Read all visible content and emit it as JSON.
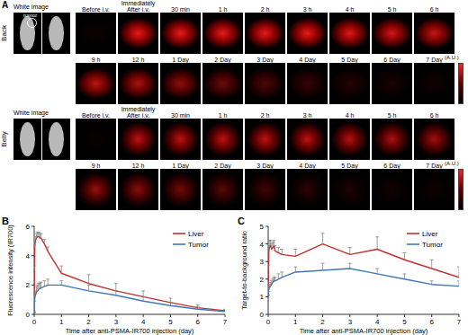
{
  "panel_a": {
    "label": "A",
    "rows": [
      {
        "label": "Back",
        "white_image": "White image",
        "annotation": "tumor",
        "colorbar": "(A.U.)",
        "timepoints": [
          [
            "Before i.v.",
            "Immediately After i.v.",
            "30 min",
            "1 h",
            "2 h",
            "3 h",
            "4 h",
            "5 h",
            "6 h"
          ],
          [
            "9 h",
            "12 h",
            "1 Day",
            "2 Day",
            "3 Day",
            "4 Day",
            "5 Day",
            "6 Day",
            "7 Day"
          ]
        ]
      },
      {
        "label": "Belly",
        "white_image": "White image",
        "colorbar": "(A.U.)",
        "timepoints": [
          [
            "Before i.v.",
            "Immediately After i.v.",
            "30 min",
            "1 h",
            "2 h",
            "3 h",
            "4 h",
            "5 h",
            "6 h"
          ],
          [
            "9 h",
            "12 h",
            "1 Day",
            "2 Day",
            "3 Day",
            "4 Day",
            "5 Day",
            "6 Day",
            "7 Day"
          ]
        ]
      }
    ]
  },
  "chart_data": [
    {
      "type": "line",
      "panel_label": "B",
      "x_label": "Time after anti-PSMA-IR700 injection (day)",
      "y_label": "Fluorescence intensity (IR700)",
      "x": [
        0,
        0.01,
        0.021,
        0.042,
        0.083,
        0.125,
        0.167,
        0.208,
        0.25,
        0.375,
        0.5,
        1,
        2,
        3,
        4,
        5,
        6,
        7
      ],
      "xlim": [
        0,
        7
      ],
      "xticks": [
        0,
        1,
        2,
        3,
        4,
        5,
        6,
        7
      ],
      "ylim": [
        0,
        6
      ],
      "yticks": [
        0,
        2,
        4,
        6
      ],
      "legend": "upper right",
      "grid": false,
      "series": [
        {
          "name": "Liver",
          "color": "#c0312f",
          "values": [
            0.1,
            3.0,
            4.6,
            5.0,
            5.2,
            5.3,
            5.3,
            5.2,
            5.2,
            4.8,
            4.3,
            2.8,
            2.1,
            1.6,
            1.2,
            0.8,
            0.45,
            0.25
          ],
          "errors": [
            0.05,
            0.3,
            0.3,
            0.3,
            0.3,
            0.3,
            0.3,
            0.3,
            0.3,
            0.3,
            0.3,
            0.5,
            0.6,
            0.5,
            0.4,
            0.3,
            0.2,
            0.1
          ]
        },
        {
          "name": "Tumor",
          "color": "#3e78b8",
          "values": [
            0.1,
            0.7,
            1.1,
            1.3,
            1.5,
            1.6,
            1.7,
            1.75,
            1.8,
            1.9,
            2.0,
            2.0,
            1.6,
            1.3,
            0.9,
            0.6,
            0.35,
            0.2
          ],
          "errors": [
            0.05,
            0.2,
            0.3,
            0.3,
            0.4,
            0.4,
            0.4,
            0.4,
            0.4,
            0.4,
            0.4,
            0.3,
            0.4,
            0.3,
            0.3,
            0.2,
            0.15,
            0.1
          ]
        }
      ]
    },
    {
      "type": "line",
      "panel_label": "C",
      "x_label": "Time after anti-PSMA-IR700 injection (day)",
      "y_label": "Target-to-background ratio",
      "x": [
        0,
        0.01,
        0.021,
        0.042,
        0.083,
        0.125,
        0.167,
        0.208,
        0.25,
        0.375,
        0.5,
        1,
        2,
        3,
        4,
        5,
        6,
        7
      ],
      "xlim": [
        0,
        7
      ],
      "xticks": [
        0,
        1,
        2,
        3,
        4,
        5,
        6,
        7
      ],
      "ylim": [
        0,
        5
      ],
      "yticks": [
        0,
        1,
        2,
        3,
        4,
        5
      ],
      "legend": "upper right",
      "grid": false,
      "series": [
        {
          "name": "Liver",
          "color": "#c0312f",
          "values": [
            1.0,
            2.5,
            3.5,
            3.8,
            3.9,
            3.7,
            3.8,
            3.9,
            3.6,
            3.5,
            3.4,
            3.3,
            4.0,
            3.4,
            3.7,
            3.1,
            2.6,
            2.1
          ],
          "errors": [
            0.1,
            0.3,
            0.4,
            0.4,
            0.3,
            0.3,
            0.3,
            0.3,
            0.3,
            0.3,
            0.3,
            0.4,
            0.6,
            0.4,
            0.7,
            0.4,
            0.5,
            0.6
          ]
        },
        {
          "name": "Tumor",
          "color": "#3e78b8",
          "values": [
            1.0,
            1.2,
            1.4,
            1.5,
            1.6,
            1.7,
            1.8,
            1.9,
            1.9,
            2.0,
            2.1,
            2.4,
            2.5,
            2.6,
            2.3,
            2.0,
            1.7,
            1.6
          ],
          "errors": [
            0.1,
            0.1,
            0.2,
            0.2,
            0.2,
            0.2,
            0.2,
            0.2,
            0.2,
            0.3,
            0.3,
            0.3,
            0.4,
            0.3,
            0.3,
            0.3,
            0.2,
            0.3
          ]
        }
      ]
    }
  ]
}
